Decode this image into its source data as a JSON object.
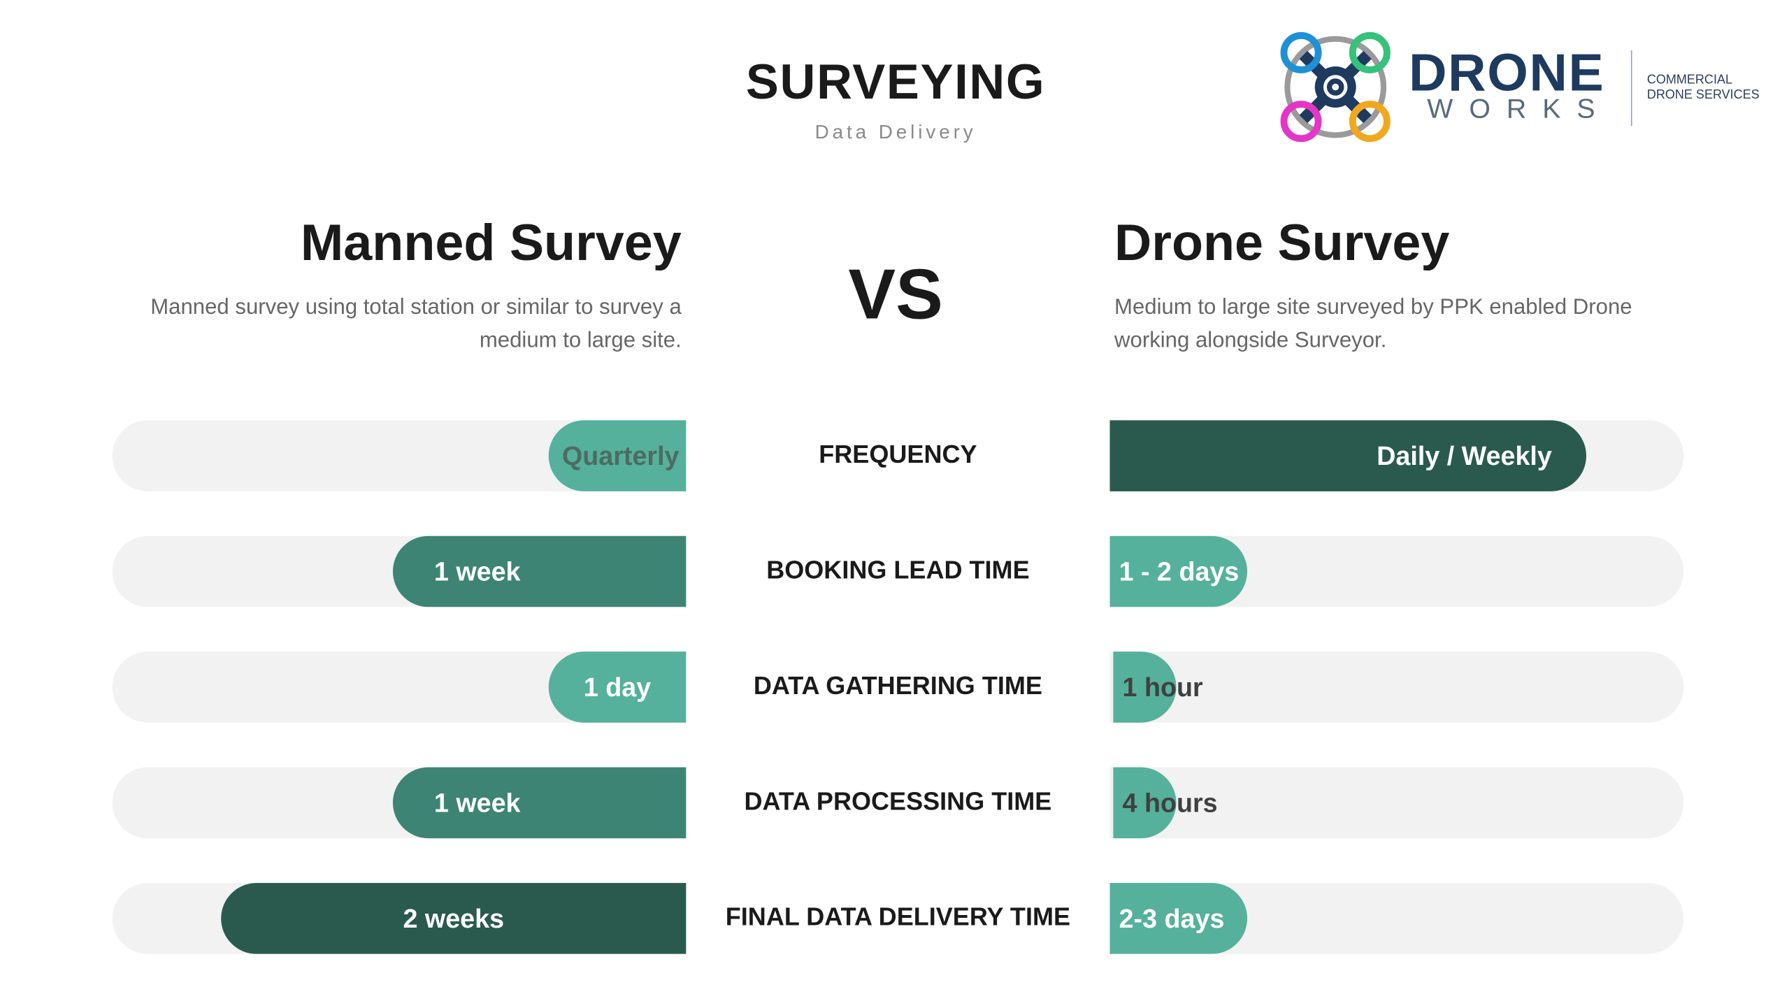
{
  "header": {
    "title": "SURVEYING",
    "subtitle": "Data Delivery"
  },
  "logo": {
    "name_top": "DRONE",
    "name_bottom": "WORKS",
    "tagline_1": "COMMERCIAL",
    "tagline_2": "DRONE SERVICES",
    "icon": "drone-icon"
  },
  "left": {
    "title": "Manned Survey",
    "description": "Manned survey using total station or similar to survey a medium to large site."
  },
  "right": {
    "title": "Drone Survey",
    "description": "Medium to large site surveyed by PPK enabled Drone working alongside Surveyor."
  },
  "vs": "VS",
  "colors": {
    "light": "#55b19b",
    "mid": "#3d8474",
    "dark": "#2a5a4e",
    "track": "#f2f2f2"
  },
  "chart_data": {
    "type": "bar",
    "categories": [
      "FREQUENCY",
      "BOOKING LEAD TIME",
      "DATA GATHERING TIME",
      "DATA PROCESSING TIME",
      "FINAL DATA DELIVERY TIME"
    ],
    "series": [
      {
        "name": "Manned Survey",
        "labels": [
          "Quarterly",
          "1 week",
          "1 day",
          "1 week",
          "2 weeks"
        ],
        "values": [
          0.24,
          0.51,
          0.24,
          0.51,
          0.81
        ]
      },
      {
        "name": "Drone Survey",
        "labels": [
          "Daily / Weekly",
          "1 - 2 days",
          "1 hour",
          "4 hours",
          "2-3 days"
        ],
        "values": [
          0.83,
          0.24,
          0.11,
          0.11,
          0.24
        ]
      }
    ]
  }
}
